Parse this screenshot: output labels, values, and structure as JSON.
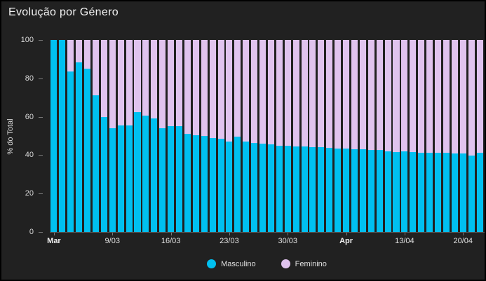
{
  "title": "Evolução por Género",
  "colors": {
    "panel_background": "#212121",
    "masculino": "#00c0f0",
    "feminino": "#e0c3ee",
    "axis_line": "#5a5a5a",
    "tick_text": "#d9d9d9",
    "title_text": "#f2f2f2"
  },
  "y_axis": {
    "label": "% do Total",
    "ticks": [
      0,
      20,
      40,
      60,
      80,
      100
    ]
  },
  "x_axis": {
    "tick_labels": [
      {
        "index": 0,
        "label": "Mar",
        "bold": true
      },
      {
        "index": 7,
        "label": "9/03",
        "bold": false
      },
      {
        "index": 14,
        "label": "16/03",
        "bold": false
      },
      {
        "index": 21,
        "label": "23/03",
        "bold": false
      },
      {
        "index": 28,
        "label": "30/03",
        "bold": false
      },
      {
        "index": 35,
        "label": "Apr",
        "bold": true
      },
      {
        "index": 42,
        "label": "13/04",
        "bold": false
      },
      {
        "index": 49,
        "label": "20/04",
        "bold": false
      }
    ]
  },
  "legend": [
    {
      "label": "Masculino",
      "color": "#00c0f0"
    },
    {
      "label": "Feminino",
      "color": "#e0c3ee"
    }
  ],
  "chart_data": {
    "type": "bar",
    "stacked": true,
    "percent_stacked": true,
    "title": "Evolução por Género",
    "xlabel": "",
    "ylabel": "% do Total",
    "ylim": [
      0,
      100
    ],
    "grid": false,
    "legend_position": "bottom",
    "x": [
      "2/03",
      "3/03",
      "4/03",
      "5/03",
      "6/03",
      "7/03",
      "8/03",
      "9/03",
      "10/03",
      "11/03",
      "12/03",
      "13/03",
      "14/03",
      "15/03",
      "16/03",
      "17/03",
      "18/03",
      "19/03",
      "20/03",
      "21/03",
      "22/03",
      "23/03",
      "24/03",
      "25/03",
      "26/03",
      "27/03",
      "28/03",
      "29/03",
      "30/03",
      "31/03",
      "1/04",
      "2/04",
      "3/04",
      "4/04",
      "5/04",
      "6/04",
      "7/04",
      "8/04",
      "9/04",
      "10/04",
      "11/04",
      "12/04",
      "13/04",
      "14/04",
      "15/04",
      "16/04",
      "17/04",
      "18/04",
      "19/04",
      "20/04",
      "21/04",
      "22/04"
    ],
    "series": [
      {
        "name": "Masculino",
        "color": "#00c0f0",
        "values": [
          100,
          100,
          83.5,
          88.5,
          85,
          71,
          60,
          54,
          55.5,
          55.5,
          62.5,
          60.5,
          59,
          54,
          55,
          55,
          51,
          50.5,
          50,
          49,
          48.5,
          47,
          49.5,
          47,
          46.5,
          46,
          45.5,
          45,
          44.8,
          44.6,
          44.4,
          44.2,
          44,
          43.8,
          43.5,
          43.3,
          43.1,
          42.9,
          42.8,
          42.7,
          42,
          41.7,
          42,
          41.7,
          41.4,
          41.1,
          41.4,
          41.1,
          40.7,
          40.7,
          39.9,
          41.1
        ]
      },
      {
        "name": "Feminino",
        "color": "#e0c3ee",
        "values": [
          0,
          0,
          16.5,
          11.5,
          15,
          29,
          40,
          46,
          44.5,
          44.5,
          37.5,
          39.5,
          41,
          46,
          45,
          45,
          49,
          49.5,
          50,
          51,
          51.5,
          53,
          50.5,
          53,
          53.5,
          54,
          54.5,
          55,
          55.2,
          55.4,
          55.6,
          55.8,
          56,
          56.2,
          56.5,
          56.7,
          56.9,
          57.1,
          57.2,
          57.3,
          58,
          58.3,
          58,
          58.3,
          58.6,
          58.9,
          58.6,
          58.9,
          59.3,
          59.3,
          60.1,
          58.9
        ]
      }
    ]
  }
}
